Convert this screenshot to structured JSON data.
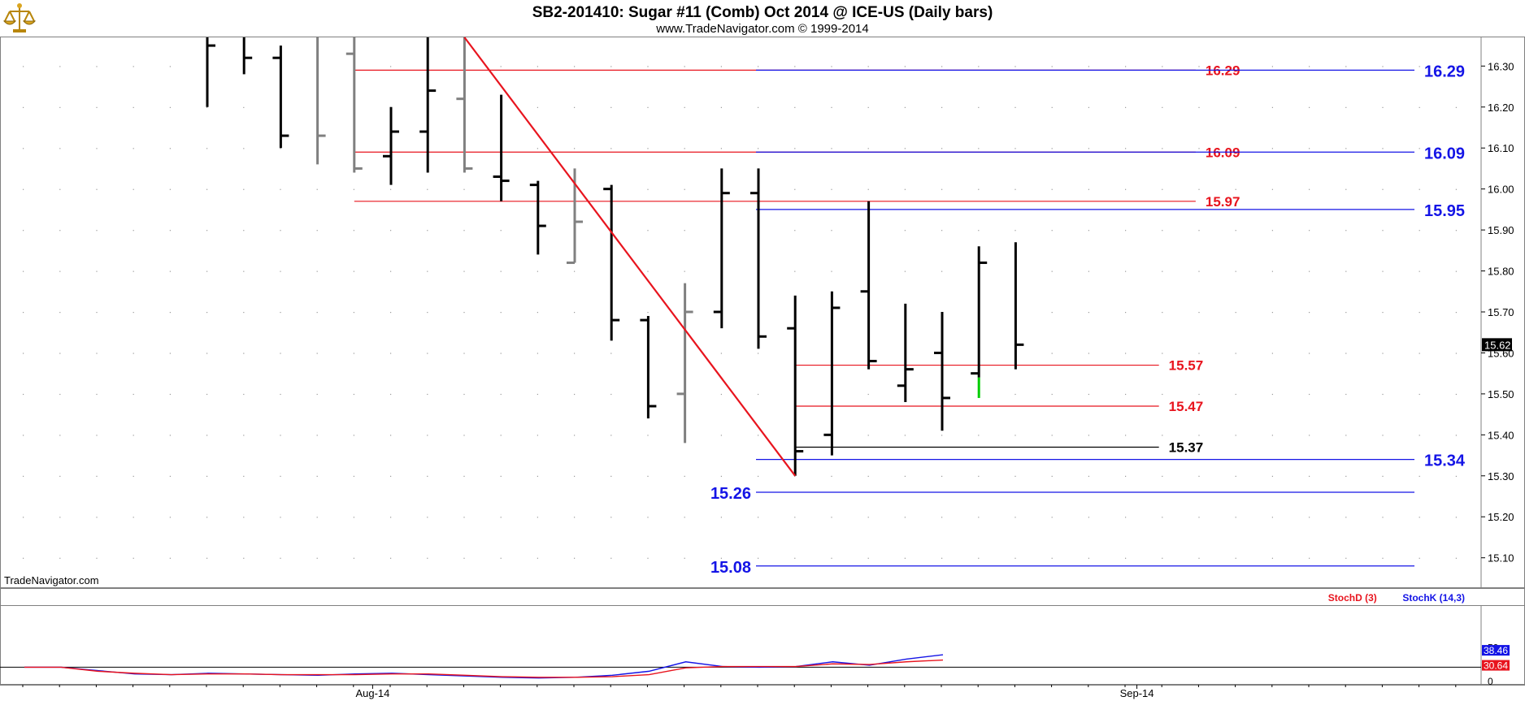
{
  "header": {
    "title": "SB2-201410:  Sugar #11 (Comb) Oct 2014 @ ICE-US  (Daily bars)",
    "subtitle": "www.TradeNavigator.com © 1999-2014",
    "watermark": "TradeNavigator.com",
    "logo_icon": "scales-of-justice-icon"
  },
  "colors": {
    "bar_up": "#000000",
    "bar_gray": "#808080",
    "bar_green": "#00cc00",
    "red_level": "#e8141e",
    "blue_level": "#1414e6",
    "trendline": "#e8141e",
    "stoch_d": "#e8141e",
    "stoch_k": "#1414e6",
    "axis_text": "#000000"
  },
  "chart_data": [
    {
      "type": "ohlc",
      "title": "SB2-201410:  Sugar #11 (Comb) Oct 2014 @ ICE-US  (Daily bars)",
      "ylim": [
        15.03,
        16.37
      ],
      "y_ticks": [
        {
          "v": 16.3,
          "label": "16.30"
        },
        {
          "v": 16.2,
          "label": "16.20"
        },
        {
          "v": 16.1,
          "label": "16.10"
        },
        {
          "v": 16.0,
          "label": "16.00"
        },
        {
          "v": 15.9,
          "label": "15.90"
        },
        {
          "v": 15.8,
          "label": "15.80"
        },
        {
          "v": 15.7,
          "label": "15.70"
        },
        {
          "v": 15.6,
          "label": "15.60"
        },
        {
          "v": 15.5,
          "label": "15.50"
        },
        {
          "v": 15.4,
          "label": "15.40"
        },
        {
          "v": 15.3,
          "label": "15.30"
        },
        {
          "v": 15.2,
          "label": "15.20"
        },
        {
          "v": 15.1,
          "label": "15.10"
        }
      ],
      "last_price": {
        "value": 15.62,
        "label": "15.62"
      },
      "x_labels": [
        {
          "index": 4.5,
          "label": "Aug-14"
        },
        {
          "index": 25.3,
          "label": "Sep-14"
        }
      ],
      "bars": [
        {
          "o": null,
          "h": 16.37,
          "l": 16.2,
          "c": 16.35,
          "color": "black"
        },
        {
          "o": null,
          "h": 16.37,
          "l": 16.28,
          "c": 16.32,
          "color": "black"
        },
        {
          "o": 16.32,
          "h": 16.35,
          "l": 16.1,
          "c": 16.13,
          "color": "black"
        },
        {
          "o": null,
          "h": 16.37,
          "l": 16.06,
          "c": 16.13,
          "color": "gray"
        },
        {
          "o": 16.33,
          "h": 16.37,
          "l": 16.04,
          "c": 16.05,
          "color": "gray"
        },
        {
          "o": 16.08,
          "h": 16.2,
          "l": 16.01,
          "c": 16.14,
          "color": "black"
        },
        {
          "o": 16.14,
          "h": 16.37,
          "l": 16.04,
          "c": 16.24,
          "color": "black"
        },
        {
          "o": 16.22,
          "h": 16.37,
          "l": 16.04,
          "c": 16.05,
          "color": "gray"
        },
        {
          "o": 16.03,
          "h": 16.23,
          "l": 15.97,
          "c": 16.02,
          "color": "black"
        },
        {
          "o": 16.01,
          "h": 16.02,
          "l": 15.84,
          "c": 15.91,
          "color": "black"
        },
        {
          "o": 15.82,
          "h": 16.05,
          "l": 15.82,
          "c": 15.92,
          "color": "gray"
        },
        {
          "o": 16.0,
          "h": 16.01,
          "l": 15.63,
          "c": 15.68,
          "color": "black"
        },
        {
          "o": 15.68,
          "h": 15.69,
          "l": 15.44,
          "c": 15.47,
          "color": "black"
        },
        {
          "o": 15.5,
          "h": 15.77,
          "l": 15.38,
          "c": 15.7,
          "color": "gray"
        },
        {
          "o": 15.7,
          "h": 16.05,
          "l": 15.66,
          "c": 15.99,
          "color": "black"
        },
        {
          "o": 15.99,
          "h": 16.05,
          "l": 15.61,
          "c": 15.64,
          "color": "black"
        },
        {
          "o": 15.66,
          "h": 15.74,
          "l": 15.3,
          "c": 15.36,
          "color": "black"
        },
        {
          "o": 15.4,
          "h": 15.75,
          "l": 15.35,
          "c": 15.71,
          "color": "black"
        },
        {
          "o": 15.75,
          "h": 15.97,
          "l": 15.56,
          "c": 15.58,
          "color": "black"
        },
        {
          "o": 15.52,
          "h": 15.72,
          "l": 15.48,
          "c": 15.56,
          "color": "black"
        },
        {
          "o": 15.6,
          "h": 15.7,
          "l": 15.41,
          "c": 15.49,
          "color": "black"
        },
        {
          "o": 15.55,
          "h": 15.86,
          "l": 15.54,
          "c": 15.82,
          "color": "black",
          "low_tail": {
            "from": 15.54,
            "to": 15.49,
            "color": "green"
          }
        },
        {
          "o": null,
          "h": 15.87,
          "l": 15.56,
          "c": 15.62,
          "color": "black"
        }
      ],
      "trendline": {
        "from": {
          "index": 7.0,
          "value": 16.37
        },
        "to": {
          "index": 16.0,
          "value": 15.3
        }
      },
      "red_levels": [
        {
          "value": 16.29,
          "label": "16.29",
          "from_index": 4.0,
          "to_index": 26.9
        },
        {
          "value": 16.09,
          "label": "16.09",
          "from_index": 4.0,
          "to_index": 26.9
        },
        {
          "value": 15.97,
          "label": "15.97",
          "from_index": 4.0,
          "to_index": 26.9
        },
        {
          "value": 15.57,
          "label": "15.57",
          "from_index": 16.0,
          "to_index": 25.9
        },
        {
          "value": 15.47,
          "label": "15.47",
          "from_index": 16.0,
          "to_index": 25.9
        }
      ],
      "black_levels": [
        {
          "value": 15.37,
          "label": "15.37",
          "from_index": 16.0,
          "to_index": 25.9
        }
      ],
      "blue_levels": [
        {
          "value": 16.29,
          "label": "16.29",
          "label_side": "right"
        },
        {
          "value": 16.09,
          "label": "16.09",
          "label_side": "right"
        },
        {
          "value": 15.95,
          "label": "15.95",
          "label_side": "right"
        },
        {
          "value": 15.34,
          "label": "15.34",
          "label_side": "right"
        },
        {
          "value": 15.26,
          "label": "15.26",
          "label_side": "left"
        },
        {
          "value": 15.08,
          "label": "15.08",
          "label_side": "left"
        }
      ]
    },
    {
      "type": "line",
      "legend": [
        {
          "name": "StochD (3)",
          "color": "red"
        },
        {
          "name": "StochK (14,3)",
          "color": "blue"
        }
      ],
      "ylim": [
        0,
        100
      ],
      "y_ticks": [
        {
          "v": 50,
          "label": "50"
        },
        {
          "v": 0,
          "label": "0"
        }
      ],
      "ref_line": 20,
      "readouts": [
        {
          "value": 38.46,
          "label": "38.46",
          "color": "blue"
        },
        {
          "value": 30.64,
          "label": "30.64",
          "color": "red"
        }
      ],
      "series": [
        {
          "name": "StochK (14,3)",
          "color": "blue",
          "values": [
            20,
            20,
            15,
            10,
            9,
            11,
            10,
            9,
            8,
            10,
            11,
            9,
            7,
            5,
            4,
            5,
            8,
            14,
            28,
            21,
            20,
            21,
            28,
            23,
            32,
            38.46
          ]
        },
        {
          "name": "StochD (3)",
          "color": "red",
          "values": [
            20,
            20,
            14,
            11,
            9,
            10,
            10,
            9,
            9,
            9,
            10,
            10,
            8,
            6,
            5,
            5,
            6,
            9,
            19,
            21,
            21,
            21,
            25,
            24,
            28,
            30.64
          ]
        }
      ]
    }
  ]
}
